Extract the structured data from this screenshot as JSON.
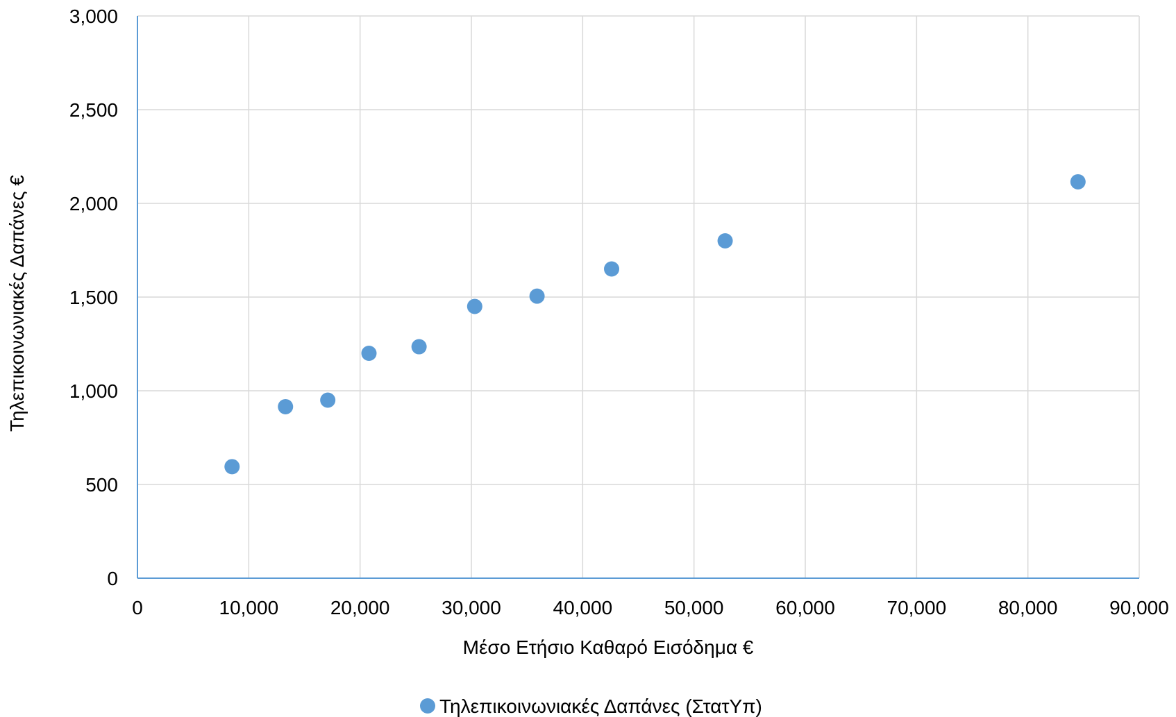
{
  "chart_data": {
    "type": "scatter",
    "title": "",
    "xlabel": "Μέσο Ετήσιο Καθαρό Εισόδημα €",
    "ylabel": "Τηλεπικοινωνιακές Δαπάνες €",
    "xlim": [
      0,
      90000
    ],
    "ylim": [
      0,
      3000
    ],
    "x_ticks": [
      0,
      10000,
      20000,
      30000,
      40000,
      50000,
      60000,
      70000,
      80000,
      90000
    ],
    "y_ticks": [
      0,
      500,
      1000,
      1500,
      2000,
      2500,
      3000
    ],
    "x_tick_labels": [
      "0",
      "10,000",
      "20,000",
      "30,000",
      "40,000",
      "50,000",
      "60,000",
      "70,000",
      "80,000",
      "90,000"
    ],
    "y_tick_labels": [
      "0",
      "500",
      "1,000",
      "1,500",
      "2,000",
      "2,500",
      "3,000"
    ],
    "grid": true,
    "legend_position": "bottom",
    "series": [
      {
        "name": "Τηλεπικοινωνιακές Δαπάνες (ΣτατΥπ)",
        "color": "#5b9bd5",
        "x": [
          8500,
          13300,
          17100,
          20800,
          25300,
          30300,
          35900,
          42600,
          52800,
          84500
        ],
        "y": [
          595,
          915,
          950,
          1200,
          1235,
          1450,
          1505,
          1650,
          1800,
          2115
        ]
      }
    ]
  }
}
